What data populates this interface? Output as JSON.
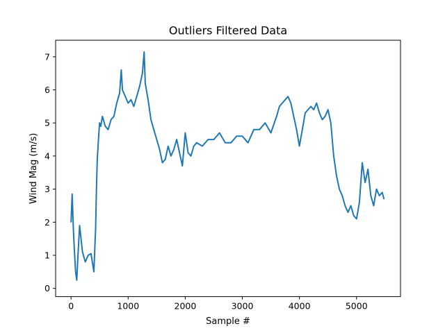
{
  "chart_data": {
    "type": "line",
    "title": "Outliers Filtered Data",
    "xlabel": "Sample #",
    "ylabel": "Wind Mag (m/s)",
    "xlim": [
      -270,
      5770
    ],
    "ylim": [
      -0.25,
      7.5
    ],
    "x_ticks": [
      0,
      1000,
      2000,
      3000,
      4000,
      5000
    ],
    "y_ticks": [
      0,
      1,
      2,
      3,
      4,
      5,
      6,
      7
    ],
    "grid": false,
    "legend": "none",
    "series": [
      {
        "color": "#1f77b4",
        "x": [
          0,
          20,
          40,
          60,
          80,
          100,
          120,
          150,
          200,
          250,
          300,
          350,
          400,
          430,
          445,
          460,
          480,
          500,
          520,
          550,
          600,
          650,
          700,
          750,
          800,
          850,
          880,
          900,
          950,
          1000,
          1050,
          1100,
          1150,
          1200,
          1250,
          1280,
          1300,
          1350,
          1400,
          1450,
          1500,
          1550,
          1600,
          1650,
          1700,
          1750,
          1800,
          1850,
          1900,
          1950,
          2000,
          2050,
          2100,
          2150,
          2200,
          2300,
          2400,
          2500,
          2600,
          2700,
          2800,
          2900,
          3000,
          3100,
          3200,
          3300,
          3400,
          3500,
          3600,
          3650,
          3700,
          3750,
          3800,
          3850,
          3900,
          3950,
          4000,
          4050,
          4100,
          4150,
          4200,
          4250,
          4300,
          4350,
          4400,
          4450,
          4500,
          4550,
          4600,
          4650,
          4700,
          4750,
          4800,
          4850,
          4900,
          4950,
          5000,
          5050,
          5100,
          5150,
          5200,
          5250,
          5300,
          5350,
          5400,
          5450,
          5480
        ],
        "y": [
          2.0,
          2.85,
          1.8,
          1.1,
          0.5,
          0.25,
          0.95,
          1.9,
          1.1,
          0.8,
          1.0,
          1.05,
          0.5,
          1.8,
          3.0,
          3.9,
          4.5,
          5.0,
          4.9,
          5.2,
          4.9,
          4.8,
          5.1,
          5.2,
          5.6,
          5.9,
          6.6,
          6.0,
          5.8,
          5.6,
          5.7,
          5.5,
          5.8,
          6.1,
          6.5,
          7.15,
          6.2,
          5.7,
          5.1,
          4.8,
          4.5,
          4.2,
          3.8,
          3.9,
          4.3,
          4.0,
          4.2,
          4.5,
          4.1,
          3.7,
          4.7,
          4.1,
          4.0,
          4.3,
          4.4,
          4.3,
          4.5,
          4.5,
          4.7,
          4.4,
          4.4,
          4.6,
          4.6,
          4.4,
          4.8,
          4.8,
          5.0,
          4.7,
          5.2,
          5.5,
          5.6,
          5.7,
          5.8,
          5.6,
          5.2,
          4.8,
          4.3,
          4.8,
          5.3,
          5.4,
          5.5,
          5.4,
          5.6,
          5.3,
          5.1,
          5.2,
          5.4,
          5.0,
          4.0,
          3.4,
          3.0,
          2.8,
          2.5,
          2.3,
          2.5,
          2.2,
          2.1,
          2.6,
          3.8,
          3.2,
          3.6,
          2.8,
          2.5,
          3.0,
          2.8,
          2.9,
          2.7
        ]
      }
    ]
  }
}
